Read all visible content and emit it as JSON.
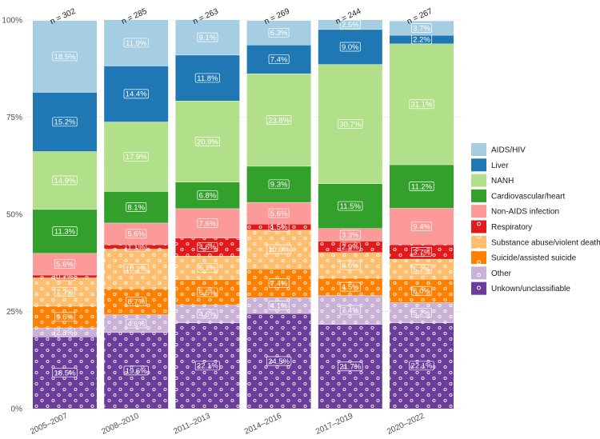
{
  "chart_data": {
    "type": "bar",
    "stacked": true,
    "title": "",
    "xlabel": "",
    "ylabel": "",
    "ylim": [
      0,
      100
    ],
    "y_ticks": [
      "0%",
      "25%",
      "50%",
      "75%",
      "100%"
    ],
    "y_tick_values": [
      0,
      25,
      50,
      75,
      100
    ],
    "grid": true,
    "legend_position": "right",
    "categories": [
      "2005–2007",
      "2008–2010",
      "2011–2013",
      "2014–2016",
      "2017–2019",
      "2020–2022"
    ],
    "n_labels": [
      "n = 302",
      "n = 285",
      "n = 263",
      "n = 269",
      "n = 244",
      "n = 267"
    ],
    "series": [
      {
        "name": "Unkown/unclassifiable",
        "color": "#6a3d9a",
        "dotted": true,
        "values": [
          18.5,
          19.6,
          22.1,
          24.5,
          21.7,
          22.1
        ]
      },
      {
        "name": "Other",
        "color": "#cab2d6",
        "dotted": true,
        "values": [
          2.3,
          4.6,
          4.6,
          4.1,
          7.4,
          5.2
        ]
      },
      {
        "name": "Suicide/assisted suicide",
        "color": "#ff7f00",
        "dotted": true,
        "values": [
          5.6,
          6.7,
          6.5,
          7.4,
          4.5,
          6.0
        ]
      },
      {
        "name": "Substance abuse/violent death",
        "color": "#fdbf6f",
        "dotted": true,
        "values": [
          7.3,
          10.2,
          6.1,
          10.0,
          6.6,
          5.2
        ]
      },
      {
        "name": "Respiratory",
        "color": "#e31a1c",
        "dotted": true,
        "values": [
          0.7,
          1.1,
          4.6,
          1.5,
          2.9,
          3.7
        ]
      },
      {
        "name": "Non-AIDS infection",
        "color": "#fb9a99",
        "dotted": false,
        "values": [
          5.6,
          5.6,
          7.6,
          5.6,
          3.3,
          9.4
        ]
      },
      {
        "name": "Cardiovascular/heart",
        "color": "#33a02c",
        "dotted": false,
        "values": [
          11.3,
          8.1,
          6.8,
          9.3,
          11.5,
          11.2
        ]
      },
      {
        "name": "NANH",
        "color": "#b2df8a",
        "dotted": false,
        "values": [
          14.9,
          17.9,
          20.9,
          23.8,
          30.7,
          31.1
        ]
      },
      {
        "name": "Liver",
        "color": "#1f78b4",
        "dotted": false,
        "values": [
          15.2,
          14.4,
          11.8,
          7.4,
          9.0,
          2.2
        ]
      },
      {
        "name": "AIDS/HIV",
        "color": "#a6cee3",
        "dotted": false,
        "values": [
          18.5,
          11.9,
          9.1,
          6.3,
          2.5,
          3.7
        ]
      }
    ],
    "labels": [
      [
        "18.5%",
        "19.6%",
        "22.1%",
        "24.5%",
        "21.7%",
        "22.1%"
      ],
      [
        "2.3%",
        "4.6%",
        "4.6%",
        "4.1%",
        "7.4%",
        "5.2%"
      ],
      [
        "5.6%",
        "6.7%",
        "6.5%",
        "7.4%",
        "4.5%",
        "6.0%"
      ],
      [
        "7.3%",
        "10.2%",
        "6.1%",
        "10.0%",
        "6.6%",
        "5.2%"
      ],
      [
        "0.7%",
        "1.1%",
        "4.6%",
        "1.5%",
        "2.9%",
        "3.7%"
      ],
      [
        "5.6%",
        "5.6%",
        "7.6%",
        "5.6%",
        "3.3%",
        "9.4%"
      ],
      [
        "11.3%",
        "8.1%",
        "6.8%",
        "9.3%",
        "11.5%",
        "11.2%"
      ],
      [
        "14.9%",
        "17.9%",
        "20.9%",
        "23.8%",
        "30.7%",
        "31.1%"
      ],
      [
        "15.2%",
        "14.4%",
        "11.8%",
        "7.4%",
        "9.0%",
        "2.2%"
      ],
      [
        "18.5%",
        "11.9%",
        "9.1%",
        "6.3%",
        "2.5%",
        "3.7%"
      ]
    ],
    "legend_order": [
      "AIDS/HIV",
      "Liver",
      "NANH",
      "Cardiovascular/heart",
      "Non-AIDS infection",
      "Respiratory",
      "Substance abuse/violent death",
      "Suicide/assisted suicide",
      "Other",
      "Unkown/unclassifiable"
    ]
  }
}
